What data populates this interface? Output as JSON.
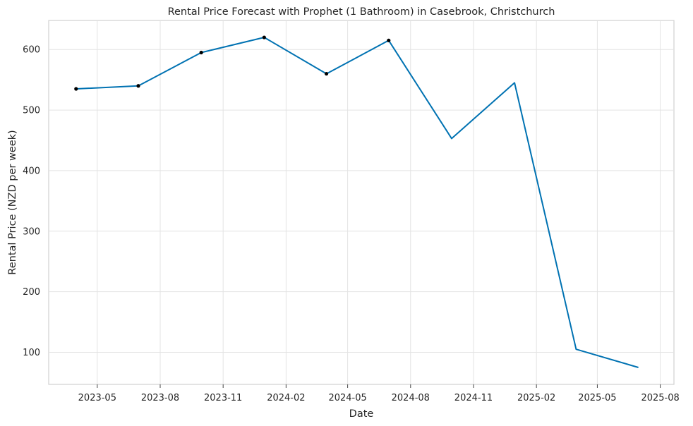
{
  "chart_data": {
    "type": "line",
    "title": "Rental Price Forecast with Prophet (1 Bathroom) in Casebrook, Christchurch",
    "xlabel": "Date",
    "ylabel": "Rental Price (NZD per week)",
    "xlim": [
      "2023-02-19",
      "2025-08-21"
    ],
    "ylim": [
      47,
      648
    ],
    "grid": true,
    "x_ticks": [
      "2023-05-01",
      "2023-08-01",
      "2023-11-01",
      "2024-02-01",
      "2024-05-01",
      "2024-08-01",
      "2024-11-01",
      "2025-02-01",
      "2025-05-01",
      "2025-08-01"
    ],
    "x_tick_labels": [
      "2023-05",
      "2023-08",
      "2023-11",
      "2024-02",
      "2024-05",
      "2024-08",
      "2024-11",
      "2025-02",
      "2025-05",
      "2025-08"
    ],
    "y_ticks": [
      100,
      200,
      300,
      400,
      500,
      600
    ],
    "y_tick_labels": [
      "100",
      "200",
      "300",
      "400",
      "500",
      "600"
    ],
    "series": [
      {
        "kind": "forecast",
        "color": "#0072b2",
        "x": [
          "2023-03-31",
          "2023-06-30",
          "2023-09-30",
          "2023-12-31",
          "2024-03-31",
          "2024-06-30",
          "2024-09-30",
          "2024-12-31",
          "2025-03-31",
          "2025-06-30"
        ],
        "y": [
          535,
          540,
          595,
          620,
          560,
          615,
          453,
          545,
          105,
          75
        ]
      },
      {
        "kind": "observed",
        "color": "#000000",
        "x": [
          "2023-03-31",
          "2023-06-30",
          "2023-09-30",
          "2023-12-31",
          "2024-03-31",
          "2024-06-30"
        ],
        "y": [
          535,
          540,
          595,
          620,
          560,
          615
        ]
      }
    ]
  }
}
